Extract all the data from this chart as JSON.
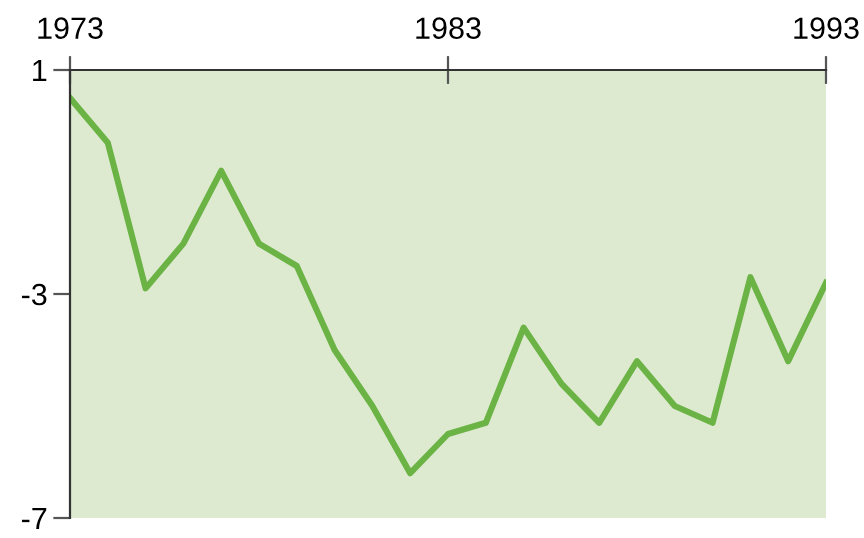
{
  "chart_data": {
    "type": "line",
    "x": [
      1973,
      1974,
      1975,
      1976,
      1977,
      1978,
      1979,
      1980,
      1981,
      1982,
      1983,
      1984,
      1985,
      1986,
      1987,
      1988,
      1989,
      1990,
      1991,
      1992,
      1993
    ],
    "series": [
      {
        "color": "#6ab344",
        "values": [
          0.5,
          -0.3,
          -2.9,
          -2.1,
          -0.8,
          -2.1,
          -2.5,
          -4.0,
          -5.0,
          -6.2,
          -5.5,
          -5.3,
          -3.6,
          -4.6,
          -5.3,
          -4.2,
          -5.0,
          -5.3,
          -2.7,
          -4.2,
          -2.8
        ]
      }
    ],
    "xlim": [
      1973,
      1993
    ],
    "xticks": [
      1973,
      1983,
      1993
    ],
    "ylim": [
      -7,
      1
    ],
    "yticks": [
      -7,
      -3,
      1
    ],
    "grid": false,
    "marker": "none",
    "line_style": "solid"
  }
}
